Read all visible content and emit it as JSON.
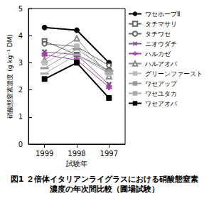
{
  "chart_data": {
    "type": "line",
    "title": "図1 ２倍体イタリアンライグラスにおける硝酸態窒素濃度の年次間比較（圃場試験）",
    "x_label": "試験年",
    "y_label": "硝酸態窒素濃度 (g kg⁻¹ DM)",
    "categories": [
      "1999",
      "1998",
      "1997"
    ],
    "ylim": [
      0,
      5
    ],
    "yticks": [
      0,
      1,
      2,
      3,
      4,
      5
    ],
    "grid": false,
    "legend": "right",
    "series": [
      {
        "name": "ワセホープⅡ",
        "color": "#000000",
        "marker": "circle",
        "values": [
          4.3,
          4.2,
          3.0
        ]
      },
      {
        "name": "タチマサリ",
        "color": "#666666",
        "marker": "open_square",
        "values": [
          3.8,
          3.3,
          2.7
        ]
      },
      {
        "name": "タチワセ",
        "color": "#666666",
        "marker": "open_circle",
        "values": [
          3.7,
          3.6,
          2.9
        ]
      },
      {
        "name": "ニオウダチ",
        "color": "#7a5a8a",
        "marker": "x",
        "values": [
          3.4,
          3.3,
          2.2
        ]
      },
      {
        "name": "ハルカゼ",
        "color": "#a040a0",
        "marker": "asterisk",
        "values": [
          3.3,
          3.1,
          2.1
        ]
      },
      {
        "name": "ハルアオバ",
        "color": "#888888",
        "marker": "open_triangle",
        "values": [
          3.1,
          3.9,
          2.5
        ]
      },
      {
        "name": "グリーンファースト",
        "color": "#bbbbbb",
        "marker": "square",
        "values": [
          3.0,
          3.6,
          2.6
        ]
      },
      {
        "name": "ワセアップ",
        "color": "#999999",
        "marker": "dash",
        "values": [
          2.8,
          3.5,
          2.7
        ]
      },
      {
        "name": "ワセユタカ",
        "color": "#aaaaaa",
        "marker": "dash",
        "values": [
          2.6,
          3.3,
          2.6
        ]
      },
      {
        "name": "ワセアオバ",
        "color": "#000000",
        "marker": "square",
        "values": [
          2.4,
          3.0,
          1.7
        ]
      }
    ]
  }
}
